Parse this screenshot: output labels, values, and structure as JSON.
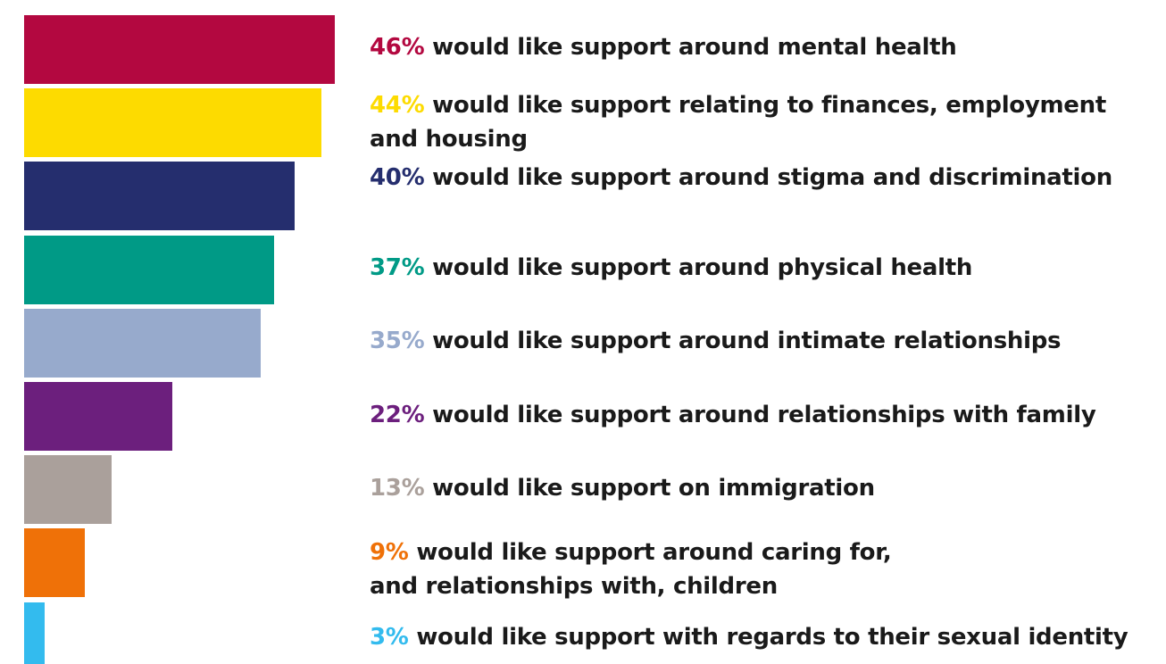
{
  "chart_data": {
    "type": "bar",
    "orientation": "horizontal",
    "title": "",
    "xlabel": "",
    "ylabel": "",
    "xlim": [
      0,
      46
    ],
    "grid": false,
    "legend": "none",
    "categories": [
      "would like support around mental health",
      "would like support relating to finances, employment and housing",
      "would like support around stigma and discrimination",
      "would like support around physical health",
      "would like support around intimate relationships",
      "would like support around relationships with family",
      "would like support on immigration",
      "would like support around caring for, and relationships with, children",
      "would like support with regards to their sexual identity"
    ],
    "values": [
      46,
      44,
      40,
      37,
      35,
      22,
      13,
      9,
      3
    ],
    "items": [
      {
        "percent_label": "46%",
        "text": "would like support around mental health",
        "value": 46,
        "color": "#b30840"
      },
      {
        "percent_label": "44%",
        "text": "would like support relating to finances, employment\nand housing",
        "value": 44,
        "color": "#fddb00"
      },
      {
        "percent_label": "40%",
        "text": "would like support around stigma and discrimination",
        "value": 40,
        "color": "#252e6e"
      },
      {
        "percent_label": "37%",
        "text": "would like support around physical health",
        "value": 37,
        "color": "#009a86"
      },
      {
        "percent_label": "35%",
        "text": "would like support around intimate relationships",
        "value": 35,
        "color": "#97aacc"
      },
      {
        "percent_label": "22%",
        "text": "would like support around relationships with family",
        "value": 22,
        "color": "#6c1f7d"
      },
      {
        "percent_label": "13%",
        "text": "would like support on immigration",
        "value": 13,
        "color": "#aaa09b"
      },
      {
        "percent_label": "9%",
        "text": "would like support around caring for,\nand relationships with, children",
        "value": 9,
        "color": "#ef7108"
      },
      {
        "percent_label": "3%",
        "text": "would like support with regards to their sexual identity",
        "value": 3,
        "color": "#33bbee"
      }
    ]
  }
}
